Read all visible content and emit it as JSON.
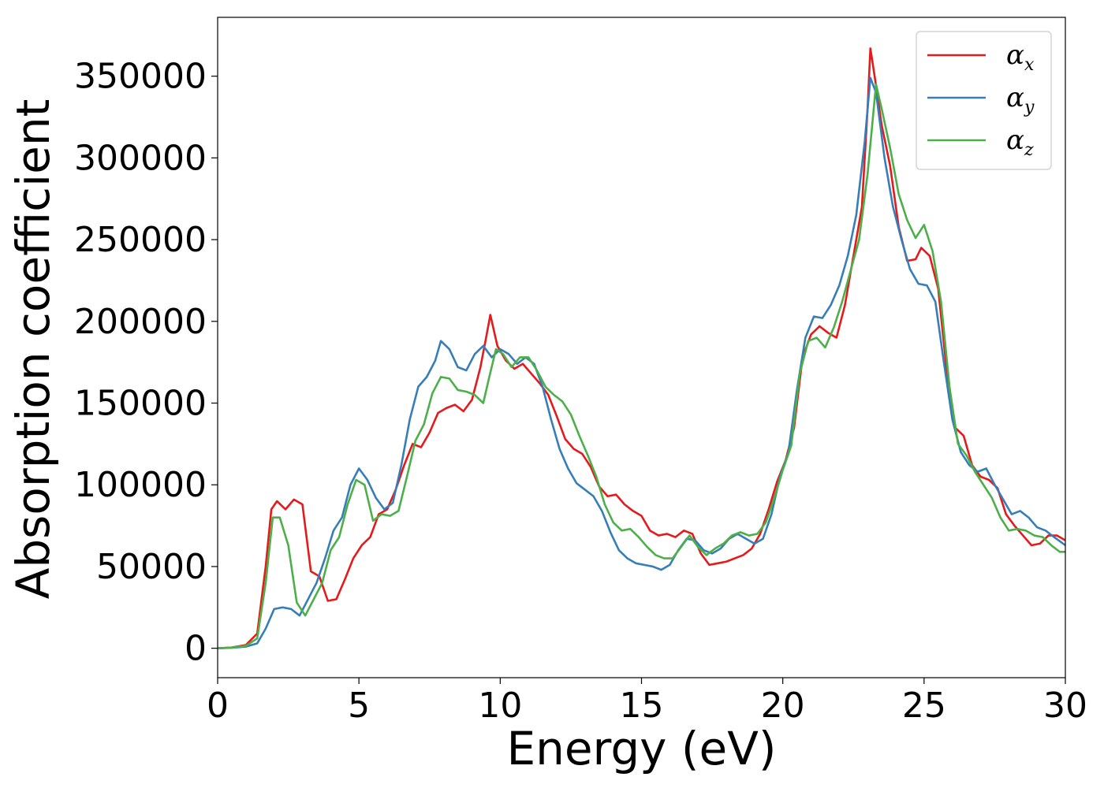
{
  "chart_data": {
    "type": "line",
    "xlabel": "Energy (eV)",
    "ylabel": "Absorption coefficient",
    "xlim": [
      0,
      30
    ],
    "ylim": [
      -18000,
      386000
    ],
    "xticks": [
      0,
      5,
      10,
      15,
      20,
      25,
      30
    ],
    "yticks": [
      0,
      50000,
      100000,
      150000,
      200000,
      250000,
      300000,
      350000
    ],
    "grid": false,
    "legend_position": "top-right",
    "series": [
      {
        "name": "αx",
        "legend_main": "α",
        "legend_sub": "x",
        "color": "#e41a1c",
        "points": [
          [
            0,
            0
          ],
          [
            0.5,
            500
          ],
          [
            1.0,
            2000
          ],
          [
            1.4,
            9000
          ],
          [
            1.7,
            50000
          ],
          [
            1.9,
            85000
          ],
          [
            2.1,
            90000
          ],
          [
            2.4,
            85000
          ],
          [
            2.7,
            91000
          ],
          [
            3.0,
            88000
          ],
          [
            3.3,
            47000
          ],
          [
            3.6,
            44000
          ],
          [
            3.9,
            29000
          ],
          [
            4.2,
            30000
          ],
          [
            4.5,
            42000
          ],
          [
            4.8,
            55000
          ],
          [
            5.1,
            63000
          ],
          [
            5.4,
            68000
          ],
          [
            5.7,
            82000
          ],
          [
            6.0,
            85000
          ],
          [
            6.3,
            97000
          ],
          [
            6.6,
            112000
          ],
          [
            6.9,
            125000
          ],
          [
            7.2,
            123000
          ],
          [
            7.5,
            132000
          ],
          [
            7.8,
            144000
          ],
          [
            8.1,
            147000
          ],
          [
            8.4,
            149000
          ],
          [
            8.7,
            145000
          ],
          [
            9.0,
            152000
          ],
          [
            9.3,
            172000
          ],
          [
            9.5,
            190000
          ],
          [
            9.65,
            204000
          ],
          [
            9.9,
            185000
          ],
          [
            10.2,
            176000
          ],
          [
            10.5,
            171000
          ],
          [
            10.8,
            174000
          ],
          [
            11.1,
            168000
          ],
          [
            11.4,
            162000
          ],
          [
            11.7,
            155000
          ],
          [
            12.0,
            142000
          ],
          [
            12.3,
            128000
          ],
          [
            12.6,
            122000
          ],
          [
            12.9,
            119000
          ],
          [
            13.2,
            111000
          ],
          [
            13.5,
            99000
          ],
          [
            13.8,
            93000
          ],
          [
            14.1,
            94000
          ],
          [
            14.4,
            88000
          ],
          [
            14.7,
            84000
          ],
          [
            15.0,
            81000
          ],
          [
            15.3,
            72000
          ],
          [
            15.6,
            69000
          ],
          [
            15.9,
            70000
          ],
          [
            16.2,
            68000
          ],
          [
            16.5,
            72000
          ],
          [
            16.8,
            70000
          ],
          [
            17.1,
            58000
          ],
          [
            17.4,
            51000
          ],
          [
            17.7,
            52000
          ],
          [
            18.0,
            53000
          ],
          [
            18.3,
            55000
          ],
          [
            18.6,
            57000
          ],
          [
            18.9,
            61000
          ],
          [
            19.2,
            70000
          ],
          [
            19.5,
            85000
          ],
          [
            19.8,
            102000
          ],
          [
            20.1,
            115000
          ],
          [
            20.4,
            135000
          ],
          [
            20.7,
            178000
          ],
          [
            21.0,
            192000
          ],
          [
            21.3,
            197000
          ],
          [
            21.6,
            193000
          ],
          [
            21.9,
            190000
          ],
          [
            22.2,
            210000
          ],
          [
            22.5,
            240000
          ],
          [
            22.8,
            270000
          ],
          [
            23.0,
            330000
          ],
          [
            23.1,
            367000
          ],
          [
            23.25,
            350000
          ],
          [
            23.5,
            320000
          ],
          [
            23.8,
            295000
          ],
          [
            24.1,
            258000
          ],
          [
            24.4,
            237000
          ],
          [
            24.7,
            238000
          ],
          [
            24.9,
            245000
          ],
          [
            25.2,
            240000
          ],
          [
            25.5,
            220000
          ],
          [
            25.8,
            170000
          ],
          [
            26.1,
            135000
          ],
          [
            26.4,
            130000
          ],
          [
            26.7,
            112000
          ],
          [
            27.0,
            105000
          ],
          [
            27.3,
            103000
          ],
          [
            27.6,
            98000
          ],
          [
            27.9,
            82000
          ],
          [
            28.2,
            75000
          ],
          [
            28.5,
            69000
          ],
          [
            28.8,
            63000
          ],
          [
            29.1,
            64000
          ],
          [
            29.4,
            69000
          ],
          [
            29.7,
            69000
          ],
          [
            30.0,
            66000
          ]
        ]
      },
      {
        "name": "αy",
        "legend_main": "α",
        "legend_sub": "y",
        "color": "#377eb8",
        "points": [
          [
            0,
            0
          ],
          [
            0.5,
            300
          ],
          [
            1.0,
            1000
          ],
          [
            1.4,
            3000
          ],
          [
            1.7,
            12000
          ],
          [
            2.0,
            24000
          ],
          [
            2.3,
            25000
          ],
          [
            2.6,
            24000
          ],
          [
            2.9,
            20000
          ],
          [
            3.2,
            30000
          ],
          [
            3.5,
            40000
          ],
          [
            3.8,
            55000
          ],
          [
            4.1,
            72000
          ],
          [
            4.4,
            80000
          ],
          [
            4.7,
            100000
          ],
          [
            5.0,
            110000
          ],
          [
            5.3,
            103000
          ],
          [
            5.6,
            92000
          ],
          [
            5.9,
            85000
          ],
          [
            6.2,
            89000
          ],
          [
            6.5,
            112000
          ],
          [
            6.8,
            140000
          ],
          [
            7.1,
            160000
          ],
          [
            7.4,
            166000
          ],
          [
            7.7,
            176000
          ],
          [
            7.9,
            188000
          ],
          [
            8.2,
            183000
          ],
          [
            8.5,
            172000
          ],
          [
            8.8,
            170000
          ],
          [
            9.1,
            180000
          ],
          [
            9.4,
            185000
          ],
          [
            9.7,
            178000
          ],
          [
            10.0,
            183000
          ],
          [
            10.3,
            180000
          ],
          [
            10.6,
            174000
          ],
          [
            10.9,
            178000
          ],
          [
            11.2,
            174000
          ],
          [
            11.5,
            160000
          ],
          [
            11.8,
            140000
          ],
          [
            12.1,
            122000
          ],
          [
            12.4,
            110000
          ],
          [
            12.7,
            101000
          ],
          [
            13.0,
            97000
          ],
          [
            13.3,
            93000
          ],
          [
            13.6,
            84000
          ],
          [
            13.9,
            71000
          ],
          [
            14.2,
            60000
          ],
          [
            14.5,
            55000
          ],
          [
            14.8,
            52000
          ],
          [
            15.1,
            51000
          ],
          [
            15.4,
            50000
          ],
          [
            15.7,
            48000
          ],
          [
            16.0,
            51000
          ],
          [
            16.3,
            60000
          ],
          [
            16.6,
            67000
          ],
          [
            16.9,
            66000
          ],
          [
            17.2,
            60000
          ],
          [
            17.5,
            58000
          ],
          [
            17.8,
            61000
          ],
          [
            18.1,
            67000
          ],
          [
            18.4,
            70000
          ],
          [
            18.7,
            67000
          ],
          [
            19.0,
            64000
          ],
          [
            19.3,
            67000
          ],
          [
            19.6,
            82000
          ],
          [
            19.9,
            105000
          ],
          [
            20.2,
            120000
          ],
          [
            20.5,
            158000
          ],
          [
            20.8,
            190000
          ],
          [
            21.1,
            203000
          ],
          [
            21.4,
            202000
          ],
          [
            21.7,
            210000
          ],
          [
            22.0,
            222000
          ],
          [
            22.3,
            240000
          ],
          [
            22.6,
            265000
          ],
          [
            22.9,
            310000
          ],
          [
            23.1,
            349000
          ],
          [
            23.3,
            340000
          ],
          [
            23.6,
            300000
          ],
          [
            23.9,
            270000
          ],
          [
            24.2,
            250000
          ],
          [
            24.5,
            232000
          ],
          [
            24.8,
            223000
          ],
          [
            25.1,
            222000
          ],
          [
            25.4,
            212000
          ],
          [
            25.7,
            175000
          ],
          [
            26.0,
            140000
          ],
          [
            26.3,
            120000
          ],
          [
            26.6,
            112000
          ],
          [
            26.9,
            108000
          ],
          [
            27.2,
            110000
          ],
          [
            27.5,
            100000
          ],
          [
            27.8,
            91000
          ],
          [
            28.1,
            82000
          ],
          [
            28.4,
            84000
          ],
          [
            28.7,
            80000
          ],
          [
            29.0,
            74000
          ],
          [
            29.3,
            72000
          ],
          [
            29.6,
            68000
          ],
          [
            30.0,
            63000
          ]
        ]
      },
      {
        "name": "αz",
        "legend_main": "α",
        "legend_sub": "z",
        "color": "#4daf4a",
        "points": [
          [
            0,
            0
          ],
          [
            0.5,
            400
          ],
          [
            1.0,
            1500
          ],
          [
            1.4,
            6000
          ],
          [
            1.7,
            40000
          ],
          [
            1.95,
            80000
          ],
          [
            2.2,
            80000
          ],
          [
            2.5,
            63000
          ],
          [
            2.8,
            28000
          ],
          [
            3.1,
            20000
          ],
          [
            3.4,
            30000
          ],
          [
            3.7,
            40000
          ],
          [
            4.0,
            60000
          ],
          [
            4.3,
            68000
          ],
          [
            4.6,
            88000
          ],
          [
            4.9,
            103000
          ],
          [
            5.2,
            100000
          ],
          [
            5.5,
            78000
          ],
          [
            5.8,
            82000
          ],
          [
            6.1,
            81000
          ],
          [
            6.4,
            84000
          ],
          [
            6.7,
            105000
          ],
          [
            7.0,
            127000
          ],
          [
            7.3,
            137000
          ],
          [
            7.6,
            156000
          ],
          [
            7.9,
            166000
          ],
          [
            8.2,
            165000
          ],
          [
            8.5,
            158000
          ],
          [
            8.8,
            157000
          ],
          [
            9.1,
            155000
          ],
          [
            9.4,
            150000
          ],
          [
            9.6,
            165000
          ],
          [
            9.85,
            183000
          ],
          [
            10.1,
            180000
          ],
          [
            10.4,
            172000
          ],
          [
            10.7,
            178000
          ],
          [
            11.0,
            178000
          ],
          [
            11.3,
            170000
          ],
          [
            11.6,
            160000
          ],
          [
            11.9,
            155000
          ],
          [
            12.2,
            151000
          ],
          [
            12.5,
            143000
          ],
          [
            12.8,
            130000
          ],
          [
            13.1,
            118000
          ],
          [
            13.4,
            105000
          ],
          [
            13.7,
            88000
          ],
          [
            14.0,
            77000
          ],
          [
            14.3,
            72000
          ],
          [
            14.6,
            73000
          ],
          [
            14.9,
            68000
          ],
          [
            15.2,
            62000
          ],
          [
            15.5,
            57000
          ],
          [
            15.8,
            55000
          ],
          [
            16.1,
            55000
          ],
          [
            16.4,
            62000
          ],
          [
            16.7,
            69000
          ],
          [
            17.0,
            62000
          ],
          [
            17.3,
            57000
          ],
          [
            17.6,
            61000
          ],
          [
            17.9,
            64000
          ],
          [
            18.2,
            69000
          ],
          [
            18.5,
            71000
          ],
          [
            18.8,
            69000
          ],
          [
            19.1,
            70000
          ],
          [
            19.4,
            77000
          ],
          [
            19.7,
            92000
          ],
          [
            20.0,
            109000
          ],
          [
            20.3,
            124000
          ],
          [
            20.6,
            168000
          ],
          [
            20.9,
            188000
          ],
          [
            21.2,
            190000
          ],
          [
            21.5,
            184000
          ],
          [
            21.8,
            196000
          ],
          [
            22.1,
            212000
          ],
          [
            22.4,
            231000
          ],
          [
            22.7,
            250000
          ],
          [
            23.0,
            290000
          ],
          [
            23.3,
            345000
          ],
          [
            23.5,
            330000
          ],
          [
            23.8,
            306000
          ],
          [
            24.1,
            278000
          ],
          [
            24.4,
            262000
          ],
          [
            24.7,
            251000
          ],
          [
            25.0,
            259000
          ],
          [
            25.3,
            243000
          ],
          [
            25.6,
            212000
          ],
          [
            25.9,
            160000
          ],
          [
            26.2,
            125000
          ],
          [
            26.5,
            118000
          ],
          [
            26.8,
            108000
          ],
          [
            27.1,
            100000
          ],
          [
            27.4,
            92000
          ],
          [
            27.7,
            80000
          ],
          [
            28.0,
            72000
          ],
          [
            28.3,
            73000
          ],
          [
            28.6,
            72000
          ],
          [
            28.9,
            69000
          ],
          [
            29.2,
            68000
          ],
          [
            29.5,
            63000
          ],
          [
            29.8,
            59000
          ],
          [
            30.0,
            59000
          ]
        ]
      }
    ]
  }
}
